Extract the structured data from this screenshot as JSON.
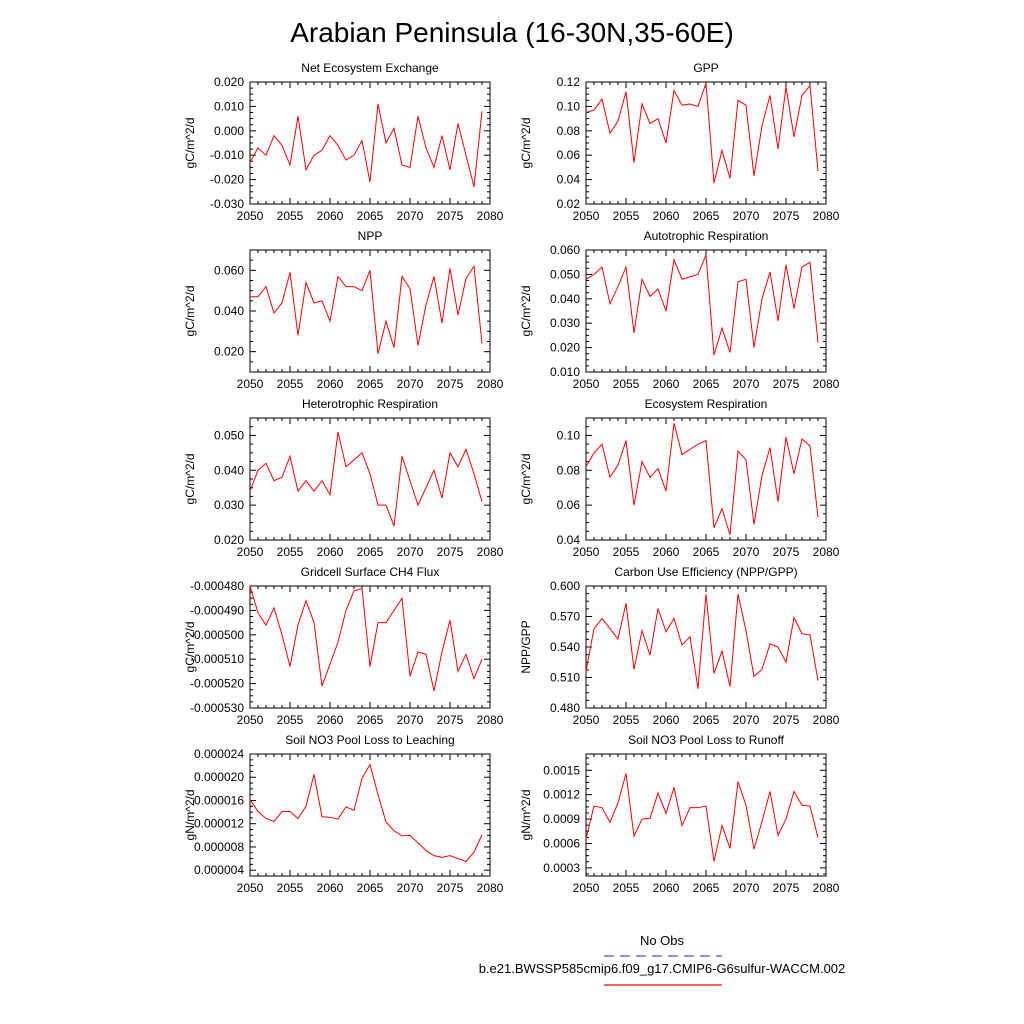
{
  "figure": {
    "title": "Arabian Peninsula (16-30N,35-60E)",
    "legend": [
      {
        "label": "No Obs",
        "color": "#4a4adf",
        "style": "dashed"
      },
      {
        "label": "b.e21.BWSSP585cmip6.f09_g17.CMIP6-G6sulfur-WACCM.002",
        "color": "#ff0000",
        "style": "solid"
      }
    ],
    "line_color": "#ff0000"
  },
  "chart_data": [
    {
      "type": "line",
      "title": "Net Ecosystem Exchange",
      "ylabel": "gC/m^2/d",
      "xlim": [
        2050,
        2080
      ],
      "ylim": [
        -0.03,
        0.02
      ],
      "xticks": [
        "2050",
        "2055",
        "2060",
        "2065",
        "2070",
        "2075",
        "2080"
      ],
      "yticks": [
        "-0.030",
        "-0.020",
        "-0.010",
        "0.000",
        "0.010",
        "0.020"
      ],
      "ytick_values": [
        -0.03,
        -0.02,
        -0.01,
        0.0,
        0.01,
        0.02
      ],
      "x_start": 2050,
      "values": [
        -0.013,
        -0.007,
        -0.01,
        -0.002,
        -0.006,
        -0.014,
        0.006,
        -0.016,
        -0.01,
        -0.008,
        -0.002,
        -0.006,
        -0.012,
        -0.01,
        -0.004,
        -0.021,
        0.011,
        -0.005,
        0.001,
        -0.014,
        -0.015,
        0.006,
        -0.007,
        -0.015,
        -0.002,
        -0.016,
        0.003,
        -0.01,
        -0.023,
        0.008
      ]
    },
    {
      "type": "line",
      "title": "GPP",
      "ylabel": "gC/m^2/d",
      "xlim": [
        2050,
        2080
      ],
      "ylim": [
        0.02,
        0.12
      ],
      "xticks": [
        "2050",
        "2055",
        "2060",
        "2065",
        "2070",
        "2075",
        "2080"
      ],
      "yticks": [
        "0.02",
        "0.04",
        "0.06",
        "0.08",
        "0.10",
        "0.12"
      ],
      "ytick_values": [
        0.02,
        0.04,
        0.06,
        0.08,
        0.1,
        0.12
      ],
      "x_start": 2050,
      "values": [
        0.095,
        0.097,
        0.106,
        0.078,
        0.088,
        0.112,
        0.054,
        0.102,
        0.086,
        0.09,
        0.07,
        0.113,
        0.101,
        0.102,
        0.1,
        0.119,
        0.037,
        0.064,
        0.041,
        0.105,
        0.101,
        0.043,
        0.084,
        0.109,
        0.065,
        0.116,
        0.075,
        0.109,
        0.117,
        0.047
      ]
    },
    {
      "type": "line",
      "title": "NPP",
      "ylabel": "gC/m^2/d",
      "xlim": [
        2050,
        2080
      ],
      "ylim": [
        0.01,
        0.07
      ],
      "xticks": [
        "2050",
        "2055",
        "2060",
        "2065",
        "2070",
        "2075",
        "2080"
      ],
      "yticks": [
        "0.020",
        "0.040",
        "0.060"
      ],
      "ytick_values": [
        0.02,
        0.04,
        0.06
      ],
      "x_start": 2050,
      "values": [
        0.047,
        0.047,
        0.052,
        0.039,
        0.044,
        0.059,
        0.028,
        0.054,
        0.044,
        0.045,
        0.035,
        0.057,
        0.052,
        0.052,
        0.05,
        0.06,
        0.019,
        0.035,
        0.022,
        0.057,
        0.051,
        0.023,
        0.043,
        0.057,
        0.034,
        0.061,
        0.038,
        0.056,
        0.062,
        0.024
      ]
    },
    {
      "type": "line",
      "title": "Autotrophic Respiration",
      "ylabel": "gC/m^2/d",
      "xlim": [
        2050,
        2080
      ],
      "ylim": [
        0.01,
        0.06
      ],
      "xticks": [
        "2050",
        "2055",
        "2060",
        "2065",
        "2070",
        "2075",
        "2080"
      ],
      "yticks": [
        "0.010",
        "0.020",
        "0.030",
        "0.040",
        "0.050",
        "0.060"
      ],
      "ytick_values": [
        0.01,
        0.02,
        0.03,
        0.04,
        0.05,
        0.06
      ],
      "x_start": 2050,
      "values": [
        0.048,
        0.05,
        0.053,
        0.038,
        0.045,
        0.053,
        0.026,
        0.048,
        0.041,
        0.044,
        0.035,
        0.056,
        0.048,
        0.049,
        0.05,
        0.058,
        0.017,
        0.028,
        0.018,
        0.047,
        0.048,
        0.02,
        0.04,
        0.051,
        0.031,
        0.054,
        0.036,
        0.053,
        0.055,
        0.022
      ]
    },
    {
      "type": "line",
      "title": "Heterotrophic Respiration",
      "ylabel": "gC/m^2/d",
      "xlim": [
        2050,
        2080
      ],
      "ylim": [
        0.02,
        0.055
      ],
      "xticks": [
        "2050",
        "2055",
        "2060",
        "2065",
        "2070",
        "2075",
        "2080"
      ],
      "yticks": [
        "0.020",
        "0.030",
        "0.040",
        "0.050"
      ],
      "ytick_values": [
        0.02,
        0.03,
        0.04,
        0.05
      ],
      "x_start": 2050,
      "values": [
        0.034,
        0.04,
        0.042,
        0.037,
        0.038,
        0.044,
        0.034,
        0.037,
        0.034,
        0.037,
        0.033,
        0.051,
        0.041,
        0.043,
        0.045,
        0.039,
        0.03,
        0.03,
        0.024,
        0.044,
        0.037,
        0.03,
        0.035,
        0.04,
        0.032,
        0.045,
        0.041,
        0.046,
        0.039,
        0.031
      ]
    },
    {
      "type": "line",
      "title": "Ecosystem Respiration",
      "ylabel": "gC/m^2/d",
      "xlim": [
        2050,
        2080
      ],
      "ylim": [
        0.04,
        0.11
      ],
      "xticks": [
        "2050",
        "2055",
        "2060",
        "2065",
        "2070",
        "2075",
        "2080"
      ],
      "yticks": [
        "0.04",
        "0.06",
        "0.08",
        "0.10"
      ],
      "ytick_values": [
        0.04,
        0.06,
        0.08,
        0.1
      ],
      "x_start": 2050,
      "values": [
        0.082,
        0.09,
        0.095,
        0.076,
        0.083,
        0.097,
        0.06,
        0.085,
        0.076,
        0.081,
        0.068,
        0.107,
        0.089,
        0.092,
        0.095,
        0.097,
        0.047,
        0.058,
        0.043,
        0.091,
        0.086,
        0.049,
        0.077,
        0.093,
        0.062,
        0.099,
        0.078,
        0.098,
        0.094,
        0.053
      ]
    },
    {
      "type": "line",
      "title": "Gridcell Surface CH4 Flux",
      "ylabel": "gC/m^2/d",
      "xlim": [
        2050,
        2080
      ],
      "ylim": [
        -0.00053,
        -0.00048
      ],
      "xticks": [
        "2050",
        "2055",
        "2060",
        "2065",
        "2070",
        "2075",
        "2080"
      ],
      "yticks": [
        "-0.000530",
        "-0.000520",
        "-0.000510",
        "-0.000500",
        "-0.000490",
        "-0.000480"
      ],
      "ytick_values": [
        -0.00053,
        -0.00052,
        -0.00051,
        -0.0005,
        -0.00049,
        -0.00048
      ],
      "x_start": 2050,
      "values": [
        -0.00048,
        -0.000491,
        -0.000496,
        -0.000489,
        -0.0005,
        -0.000513,
        -0.000496,
        -0.000486,
        -0.000495,
        -0.000521,
        -0.000512,
        -0.000503,
        -0.00049,
        -0.000482,
        -0.000481,
        -0.000513,
        -0.000495,
        -0.000495,
        -0.00049,
        -0.000485,
        -0.000517,
        -0.000507,
        -0.000508,
        -0.000523,
        -0.000507,
        -0.000494,
        -0.000515,
        -0.000508,
        -0.000518,
        -0.00051
      ]
    },
    {
      "type": "line",
      "title": "Carbon Use Efficiency (NPP/GPP)",
      "ylabel": "NPP/GPP",
      "xlim": [
        2050,
        2080
      ],
      "ylim": [
        0.48,
        0.6
      ],
      "xticks": [
        "2050",
        "2055",
        "2060",
        "2065",
        "2070",
        "2075",
        "2080"
      ],
      "yticks": [
        "0.480",
        "0.510",
        "0.540",
        "0.570",
        "0.600"
      ],
      "ytick_values": [
        0.48,
        0.51,
        0.54,
        0.57,
        0.6
      ],
      "x_start": 2050,
      "values": [
        0.516,
        0.558,
        0.568,
        0.558,
        0.548,
        0.583,
        0.518,
        0.556,
        0.532,
        0.578,
        0.555,
        0.568,
        0.542,
        0.55,
        0.499,
        0.592,
        0.514,
        0.536,
        0.501,
        0.592,
        0.556,
        0.511,
        0.518,
        0.543,
        0.54,
        0.525,
        0.569,
        0.553,
        0.552,
        0.507
      ]
    },
    {
      "type": "line",
      "title": "Soil NO3 Pool Loss to Leaching",
      "ylabel": "gN/m^2/d",
      "xlim": [
        2050,
        2080
      ],
      "ylim": [
        3e-06,
        2.4e-05
      ],
      "xticks": [
        "2050",
        "2055",
        "2060",
        "2065",
        "2070",
        "2075",
        "2080"
      ],
      "yticks": [
        "0.000004",
        "0.000008",
        "0.000012",
        "0.000016",
        "0.000020",
        "0.000024"
      ],
      "ytick_values": [
        4e-06,
        8e-06,
        1.2e-05,
        1.6e-05,
        2e-05,
        2.4e-05
      ],
      "x_start": 2050,
      "values": [
        1.62e-05,
        1.41e-05,
        1.29e-05,
        1.24e-05,
        1.41e-05,
        1.41e-05,
        1.29e-05,
        1.5e-05,
        2.05e-05,
        1.32e-05,
        1.31e-05,
        1.28e-05,
        1.49e-05,
        1.43e-05,
        1.98e-05,
        2.22e-05,
        1.7e-05,
        1.23e-05,
        1.08e-05,
        9.9e-06,
        1e-05,
        8.7e-06,
        7.4e-06,
        6.5e-06,
        6.2e-06,
        6.5e-06,
        6e-06,
        5.5e-06,
        7.1e-06,
        1.01e-05
      ]
    },
    {
      "type": "line",
      "title": "Soil NO3 Pool Loss to Runoff",
      "ylabel": "gN/m^2/d",
      "xlim": [
        2050,
        2080
      ],
      "ylim": [
        0.0002,
        0.0017
      ],
      "xticks": [
        "2050",
        "2055",
        "2060",
        "2065",
        "2070",
        "2075",
        "2080"
      ],
      "yticks": [
        "0.0003",
        "0.0006",
        "0.0009",
        "0.0012",
        "0.0015"
      ],
      "ytick_values": [
        0.0003,
        0.0006,
        0.0009,
        0.0012,
        0.0015
      ],
      "x_start": 2050,
      "values": [
        0.00066,
        0.00106,
        0.00104,
        0.00086,
        0.0011,
        0.00146,
        0.00069,
        0.0009,
        0.00091,
        0.00122,
        0.00097,
        0.00129,
        0.00082,
        0.00104,
        0.00104,
        0.00106,
        0.00038,
        0.00082,
        0.00054,
        0.00136,
        0.00107,
        0.00053,
        0.00087,
        0.00124,
        0.0007,
        0.0009,
        0.00124,
        0.00107,
        0.00106,
        0.00067
      ]
    }
  ]
}
